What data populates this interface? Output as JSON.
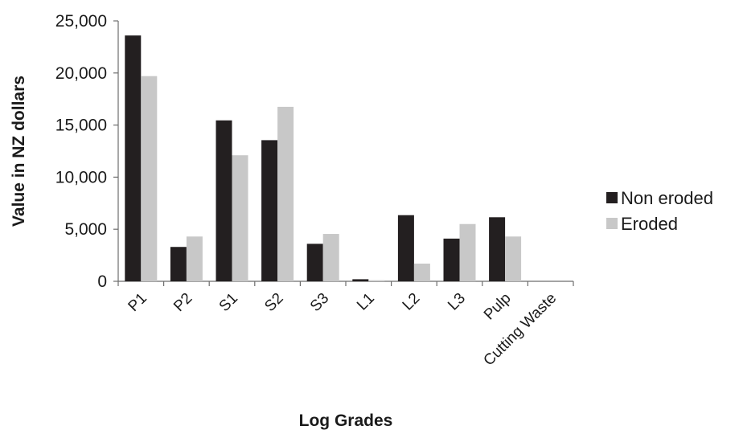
{
  "chart_data": {
    "type": "bar",
    "title": "",
    "xlabel": "Log Grades",
    "ylabel": "Value in NZ dollars",
    "ylim": [
      0,
      25000
    ],
    "yticks": [
      0,
      5000,
      10000,
      15000,
      20000,
      25000
    ],
    "ytick_labels": [
      "0",
      "5,000",
      "10,000",
      "15,000",
      "20,000",
      "25,000"
    ],
    "categories": [
      "P1",
      "P2",
      "S1",
      "S2",
      "S3",
      "L1",
      "L2",
      "L3",
      "Pulp",
      "Cutting Waste"
    ],
    "series": [
      {
        "name": "Non eroded",
        "color": "#231f20",
        "values": [
          23600,
          3300,
          15450,
          13550,
          3600,
          200,
          6350,
          4100,
          6150,
          0
        ]
      },
      {
        "name": "Eroded",
        "color": "#c8c8c8",
        "values": [
          19700,
          4300,
          12100,
          16750,
          4550,
          100,
          1700,
          5500,
          4300,
          0
        ]
      }
    ],
    "grid": false,
    "legend": "right"
  }
}
